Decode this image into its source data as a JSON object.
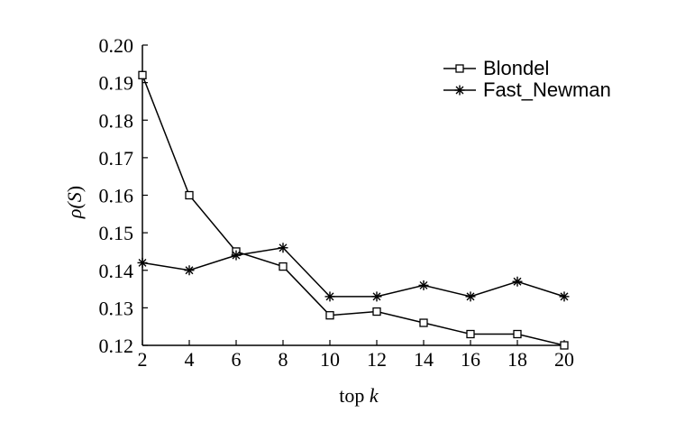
{
  "chart_data": {
    "type": "line",
    "xlabel": "top k",
    "xlabel_prefix": "top ",
    "xlabel_var": "k",
    "ylabel": "ρ(S)",
    "ylabel_prefix": "ρ(",
    "ylabel_var": "S",
    "ylabel_suffix": ")",
    "xlim": [
      2,
      20
    ],
    "ylim": [
      0.12,
      0.2
    ],
    "x": [
      2,
      4,
      6,
      8,
      10,
      12,
      14,
      16,
      18,
      20
    ],
    "xticks": [
      "2",
      "4",
      "6",
      "8",
      "10",
      "12",
      "14",
      "16",
      "18",
      "20"
    ],
    "yticks": [
      "0.12",
      "0.13",
      "0.14",
      "0.15",
      "0.16",
      "0.17",
      "0.18",
      "0.19",
      "0.20"
    ],
    "grid": false,
    "legend_position": "top-right",
    "series": [
      {
        "name": "Blondel",
        "marker": "square",
        "values": [
          0.192,
          0.16,
          0.145,
          0.141,
          0.128,
          0.129,
          0.126,
          0.123,
          0.123,
          0.12
        ]
      },
      {
        "name": "Fast_Newman",
        "marker": "asterisk",
        "values": [
          0.142,
          0.14,
          0.144,
          0.146,
          0.133,
          0.133,
          0.136,
          0.133,
          0.137,
          0.133
        ]
      }
    ]
  }
}
